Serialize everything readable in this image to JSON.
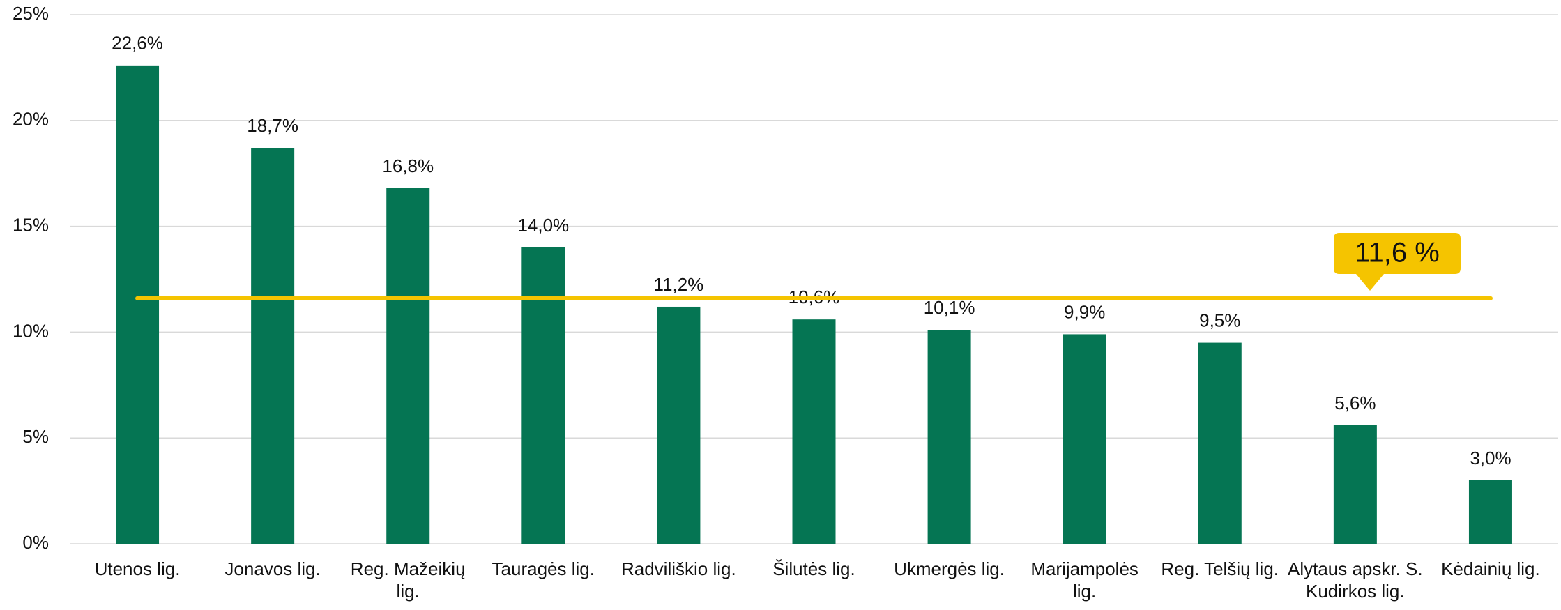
{
  "chart_data": {
    "type": "bar",
    "categories": [
      "Utenos lig.",
      "Jonavos lig.",
      "Reg. Mažeikių lig.",
      "Tauragės lig.",
      "Radviliškio lig.",
      "Šilutės lig.",
      "Ukmergės lig.",
      "Marijampolės lig.",
      "Reg. Telšių lig.",
      "Alytaus apskr. S. Kudirkos lig.",
      "Kėdainių lig."
    ],
    "values": [
      22.6,
      18.7,
      16.8,
      14.0,
      11.2,
      10.6,
      10.1,
      9.9,
      9.5,
      5.6,
      3.0
    ],
    "value_labels": [
      "22,6%",
      "18,7%",
      "16,8%",
      "14,0%",
      "11,2%",
      "10,6%",
      "10,1%",
      "9,9%",
      "9,5%",
      "5,6%",
      "3,0%"
    ],
    "color": "#057553",
    "ylim": [
      0,
      25
    ],
    "yticks": [
      {
        "value": 0,
        "label": "0%"
      },
      {
        "value": 5,
        "label": "5%"
      },
      {
        "value": 10,
        "label": "10%"
      },
      {
        "value": 15,
        "label": "15%"
      },
      {
        "value": 20,
        "label": "20%"
      },
      {
        "value": 25,
        "label": "25%"
      }
    ],
    "grid": true,
    "reference_line": {
      "value": 11.6,
      "label": "11,6 %",
      "color": "#f5c400"
    }
  }
}
